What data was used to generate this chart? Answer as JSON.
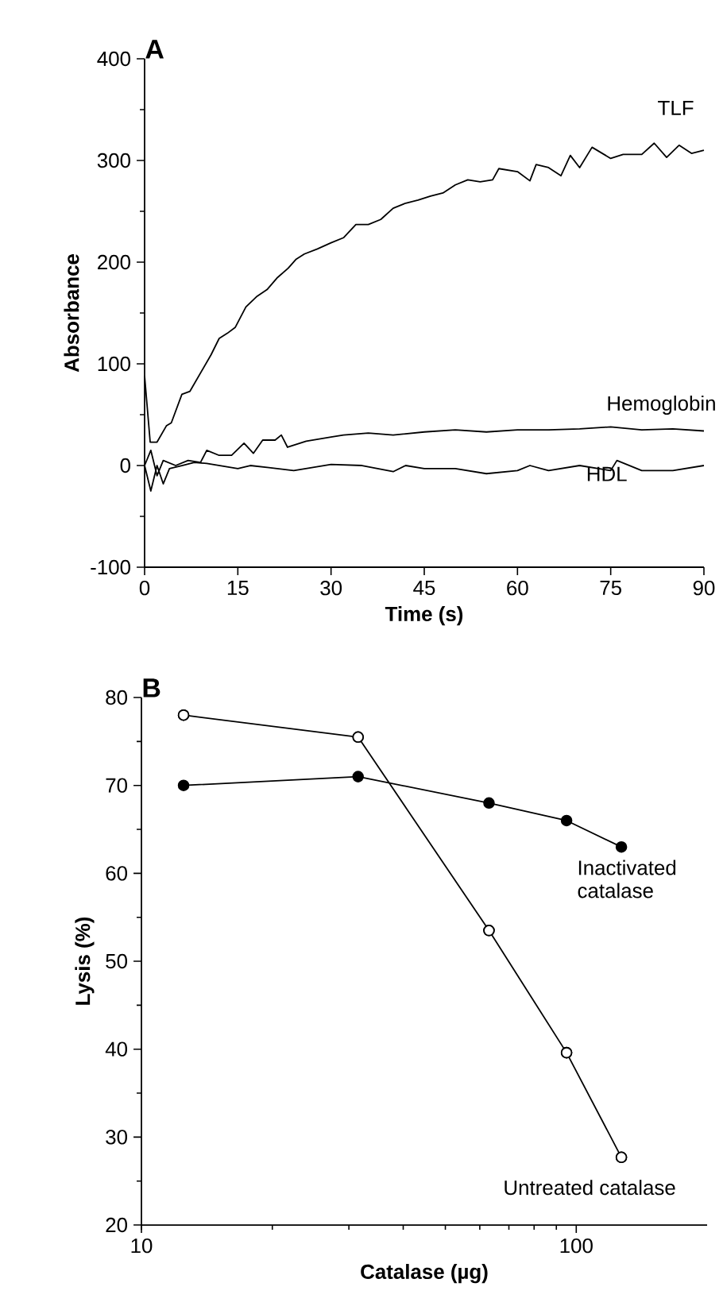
{
  "chart_data": [
    {
      "type": "line",
      "title": "A",
      "xlabel": "Time (s)",
      "ylabel": "Absorbance",
      "xlim": [
        0,
        90
      ],
      "ylim": [
        -100,
        400
      ],
      "xticks": [
        0,
        15,
        30,
        45,
        60,
        75,
        90
      ],
      "yticks": [
        -100,
        0,
        100,
        200,
        300,
        400
      ],
      "series": [
        {
          "name": "TLF",
          "color": "#000000",
          "x": [
            0,
            0.9,
            2,
            3.5,
            4.3,
            6,
            7.3,
            9,
            10.7,
            12,
            13.3,
            14.6,
            16.3,
            18,
            19.7,
            21.4,
            23.1,
            24.4,
            25.7,
            27.8,
            30,
            32,
            34,
            36,
            38,
            40,
            42,
            44,
            46,
            48,
            50,
            52,
            54,
            56,
            57,
            60,
            62,
            63,
            65,
            67,
            68.5,
            70,
            72,
            75,
            77,
            80,
            82,
            84,
            86,
            88,
            90
          ],
          "values": [
            88,
            23,
            23,
            39,
            42,
            70,
            73,
            91,
            109,
            125,
            130,
            136,
            156,
            166,
            173,
            185,
            194,
            203,
            208,
            213,
            219,
            224,
            237,
            237,
            242,
            253,
            258,
            261,
            265,
            268,
            276,
            281,
            279,
            281,
            292,
            289,
            280,
            296,
            293,
            285,
            305,
            293,
            313,
            302,
            306,
            306,
            317,
            303,
            315,
            307,
            310
          ]
        },
        {
          "name": "Hemoglobin",
          "color": "#000000",
          "x": [
            0,
            1,
            2,
            3,
            5,
            7,
            9,
            10,
            12,
            14,
            16,
            17.5,
            19,
            21,
            22,
            23,
            26,
            30,
            32,
            36,
            40,
            45,
            50,
            55,
            60,
            65,
            70,
            75,
            80,
            85,
            90
          ],
          "values": [
            0,
            15,
            -10,
            5,
            0,
            5,
            3,
            15,
            10,
            10,
            22,
            12,
            25,
            25,
            30,
            18,
            24,
            28,
            30,
            32,
            30,
            33,
            35,
            33,
            35,
            35,
            36,
            38,
            35,
            36,
            34
          ]
        },
        {
          "name": "HDL",
          "color": "#000000",
          "x": [
            0,
            1,
            2,
            3,
            4,
            6,
            8,
            10,
            15,
            17,
            20,
            24,
            30,
            35,
            40,
            42,
            45,
            50,
            55,
            60,
            62,
            65,
            70,
            75,
            76,
            80,
            85,
            90
          ],
          "values": [
            0,
            -25,
            0,
            -18,
            -3,
            0,
            3,
            2,
            -3,
            0,
            -2,
            -5,
            1,
            0,
            -6,
            0,
            -3,
            -3,
            -8,
            -5,
            0,
            -5,
            0,
            -5,
            5,
            -5,
            -5,
            0
          ]
        }
      ]
    },
    {
      "type": "line",
      "title": "B",
      "xlabel": "Catalase (µg)",
      "ylabel": "Lysis (%)",
      "log": "x",
      "xlim": [
        10,
        200
      ],
      "ylim": [
        20,
        80
      ],
      "xticks": [
        10,
        100
      ],
      "yticks": [
        20,
        30,
        40,
        50,
        60,
        70,
        80
      ],
      "marker": "circle",
      "series": [
        {
          "name": "Inactivated catalase",
          "color": "#000000",
          "x": [
            12.5,
            31.5,
            63,
            95,
            127
          ],
          "values": [
            70,
            71,
            68,
            66,
            63
          ]
        },
        {
          "name": "Untreated catalase",
          "color": "#000000",
          "colors": [
            "#ffffff",
            "#ffffff",
            "#ffffff",
            "#ffffff",
            "#ffffff"
          ],
          "x": [
            12.5,
            31.5,
            63,
            95,
            127
          ],
          "values": [
            78,
            75.5,
            53.5,
            39.6,
            27.7
          ]
        }
      ]
    }
  ]
}
